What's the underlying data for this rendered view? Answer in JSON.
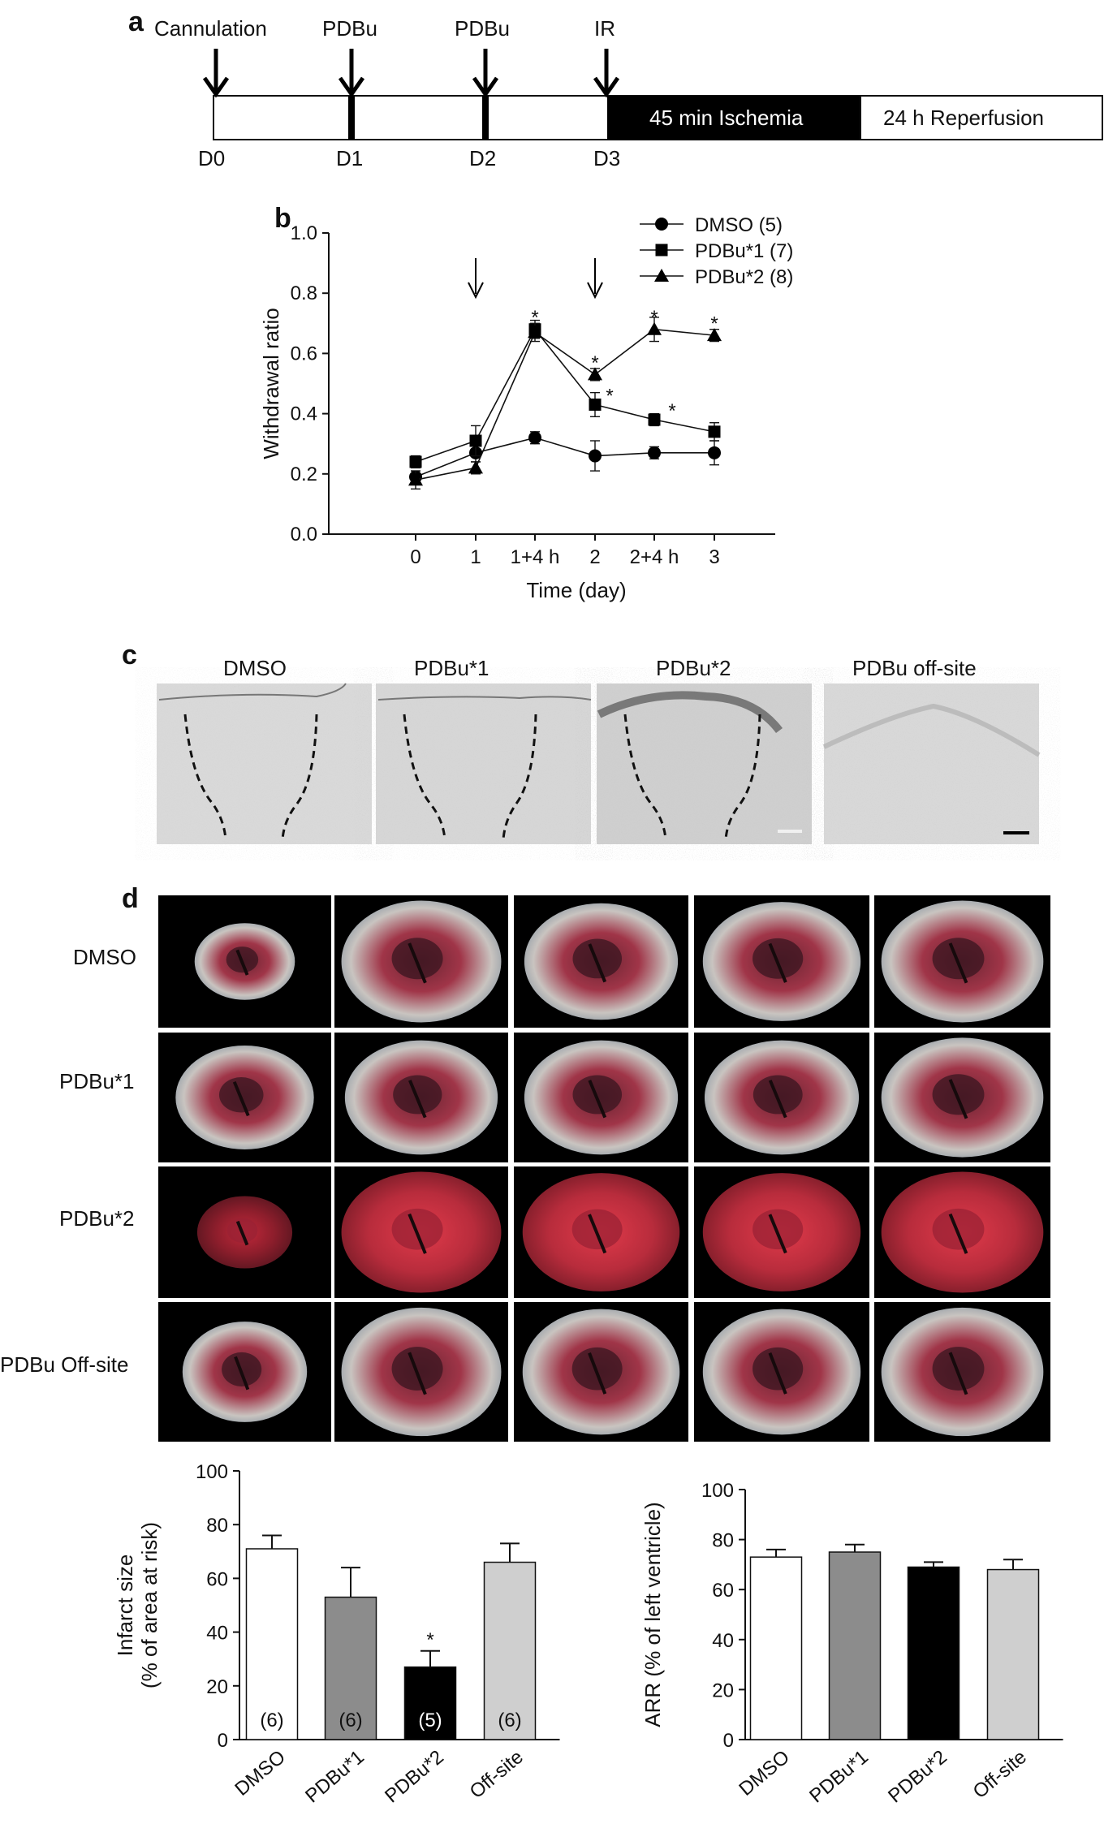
{
  "panel_a": {
    "letter": "a",
    "events": [
      {
        "label": "Cannulation",
        "day": "D0"
      },
      {
        "label": "PDBu",
        "day": "D1"
      },
      {
        "label": "PDBu",
        "day": "D2"
      },
      {
        "label": "IR",
        "day": "D3"
      }
    ],
    "ischemia_label": "45 min Ischemia",
    "reperfusion_label": "24 h Reperfusion",
    "colors": {
      "ischemia": "#000000",
      "reperfusion": "#ffffff"
    }
  },
  "panel_b": {
    "letter": "b"
  },
  "panel_c": {
    "letter": "c",
    "titles": [
      "DMSO",
      "PDBu*1",
      "PDBu*2",
      "PDBu off-site"
    ]
  },
  "panel_d": {
    "letter": "d",
    "row_labels": [
      "DMSO",
      "PDBu*1",
      "PDBu*2",
      "PDBu Off-site"
    ]
  },
  "chart_data": [
    {
      "type": "line",
      "panel": "b",
      "ylabel": "Withdrawal ratio",
      "xlabel": "Time (day)",
      "categories": [
        "0",
        "1",
        "1+4 h",
        "2",
        "2+4 h",
        "3"
      ],
      "ylim": [
        0.0,
        1.0
      ],
      "yticks": [
        "0.0",
        "0.2",
        "0.4",
        "0.6",
        "0.8",
        "1.0"
      ],
      "series": [
        {
          "name": "DMSO (5)",
          "marker": "circle",
          "values": [
            0.19,
            0.27,
            0.32,
            0.26,
            0.27,
            0.27
          ],
          "errors": [
            0.02,
            0.03,
            0.02,
            0.05,
            0.02,
            0.04
          ]
        },
        {
          "name": "PDBu*1 (7)",
          "marker": "square",
          "values": [
            0.24,
            0.31,
            0.68,
            0.43,
            0.38,
            0.34
          ],
          "errors": [
            0.02,
            0.05,
            0.03,
            0.04,
            0.02,
            0.03
          ]
        },
        {
          "name": "PDBu*2 (8)",
          "marker": "triangle",
          "values": [
            0.18,
            0.22,
            0.67,
            0.53,
            0.68,
            0.66
          ],
          "errors": [
            0.03,
            0.02,
            0.03,
            0.02,
            0.04,
            0.02
          ]
        }
      ],
      "annotations": [
        {
          "text": "*",
          "x": "1+4 h",
          "y": 0.73
        },
        {
          "text": "*",
          "x": "2",
          "y": 0.58
        },
        {
          "text": "*",
          "x": "2",
          "y": 0.47
        },
        {
          "text": "*",
          "x": "2+4 h",
          "y": 0.73
        },
        {
          "text": "*",
          "x": "2+4 h",
          "y": 0.42
        },
        {
          "text": "*",
          "x": "3",
          "y": 0.71
        }
      ],
      "arrows_at": [
        "1",
        "2"
      ],
      "legend": "top-right"
    },
    {
      "type": "bar",
      "panel": "d-left",
      "ylabel": "Infarct size\n(% of area at risk)",
      "categories": [
        "DMSO",
        "PDBu*1",
        "PDBu*2",
        "Off-site"
      ],
      "values": [
        71,
        53,
        27,
        66
      ],
      "errors": [
        5,
        11,
        6,
        7
      ],
      "n_labels": [
        "(6)",
        "(6)",
        "(5)",
        "(6)"
      ],
      "significance": [
        "",
        "",
        "*",
        ""
      ],
      "colors": [
        "#ffffff",
        "#8c8c8c",
        "#000000",
        "#cfcfcf"
      ],
      "ylim": [
        0,
        100
      ],
      "yticks": [
        "0",
        "20",
        "40",
        "60",
        "80",
        "100"
      ]
    },
    {
      "type": "bar",
      "panel": "d-right",
      "ylabel": "ARR (% of left ventricle)",
      "categories": [
        "DMSO",
        "PDBu*1",
        "PDBu*2",
        "Off-site"
      ],
      "values": [
        73,
        75,
        69,
        68
      ],
      "errors": [
        3,
        3,
        2,
        4
      ],
      "colors": [
        "#ffffff",
        "#8c8c8c",
        "#000000",
        "#cfcfcf"
      ],
      "ylim": [
        0,
        100
      ],
      "yticks": [
        "0",
        "20",
        "40",
        "60",
        "80",
        "100"
      ]
    }
  ]
}
